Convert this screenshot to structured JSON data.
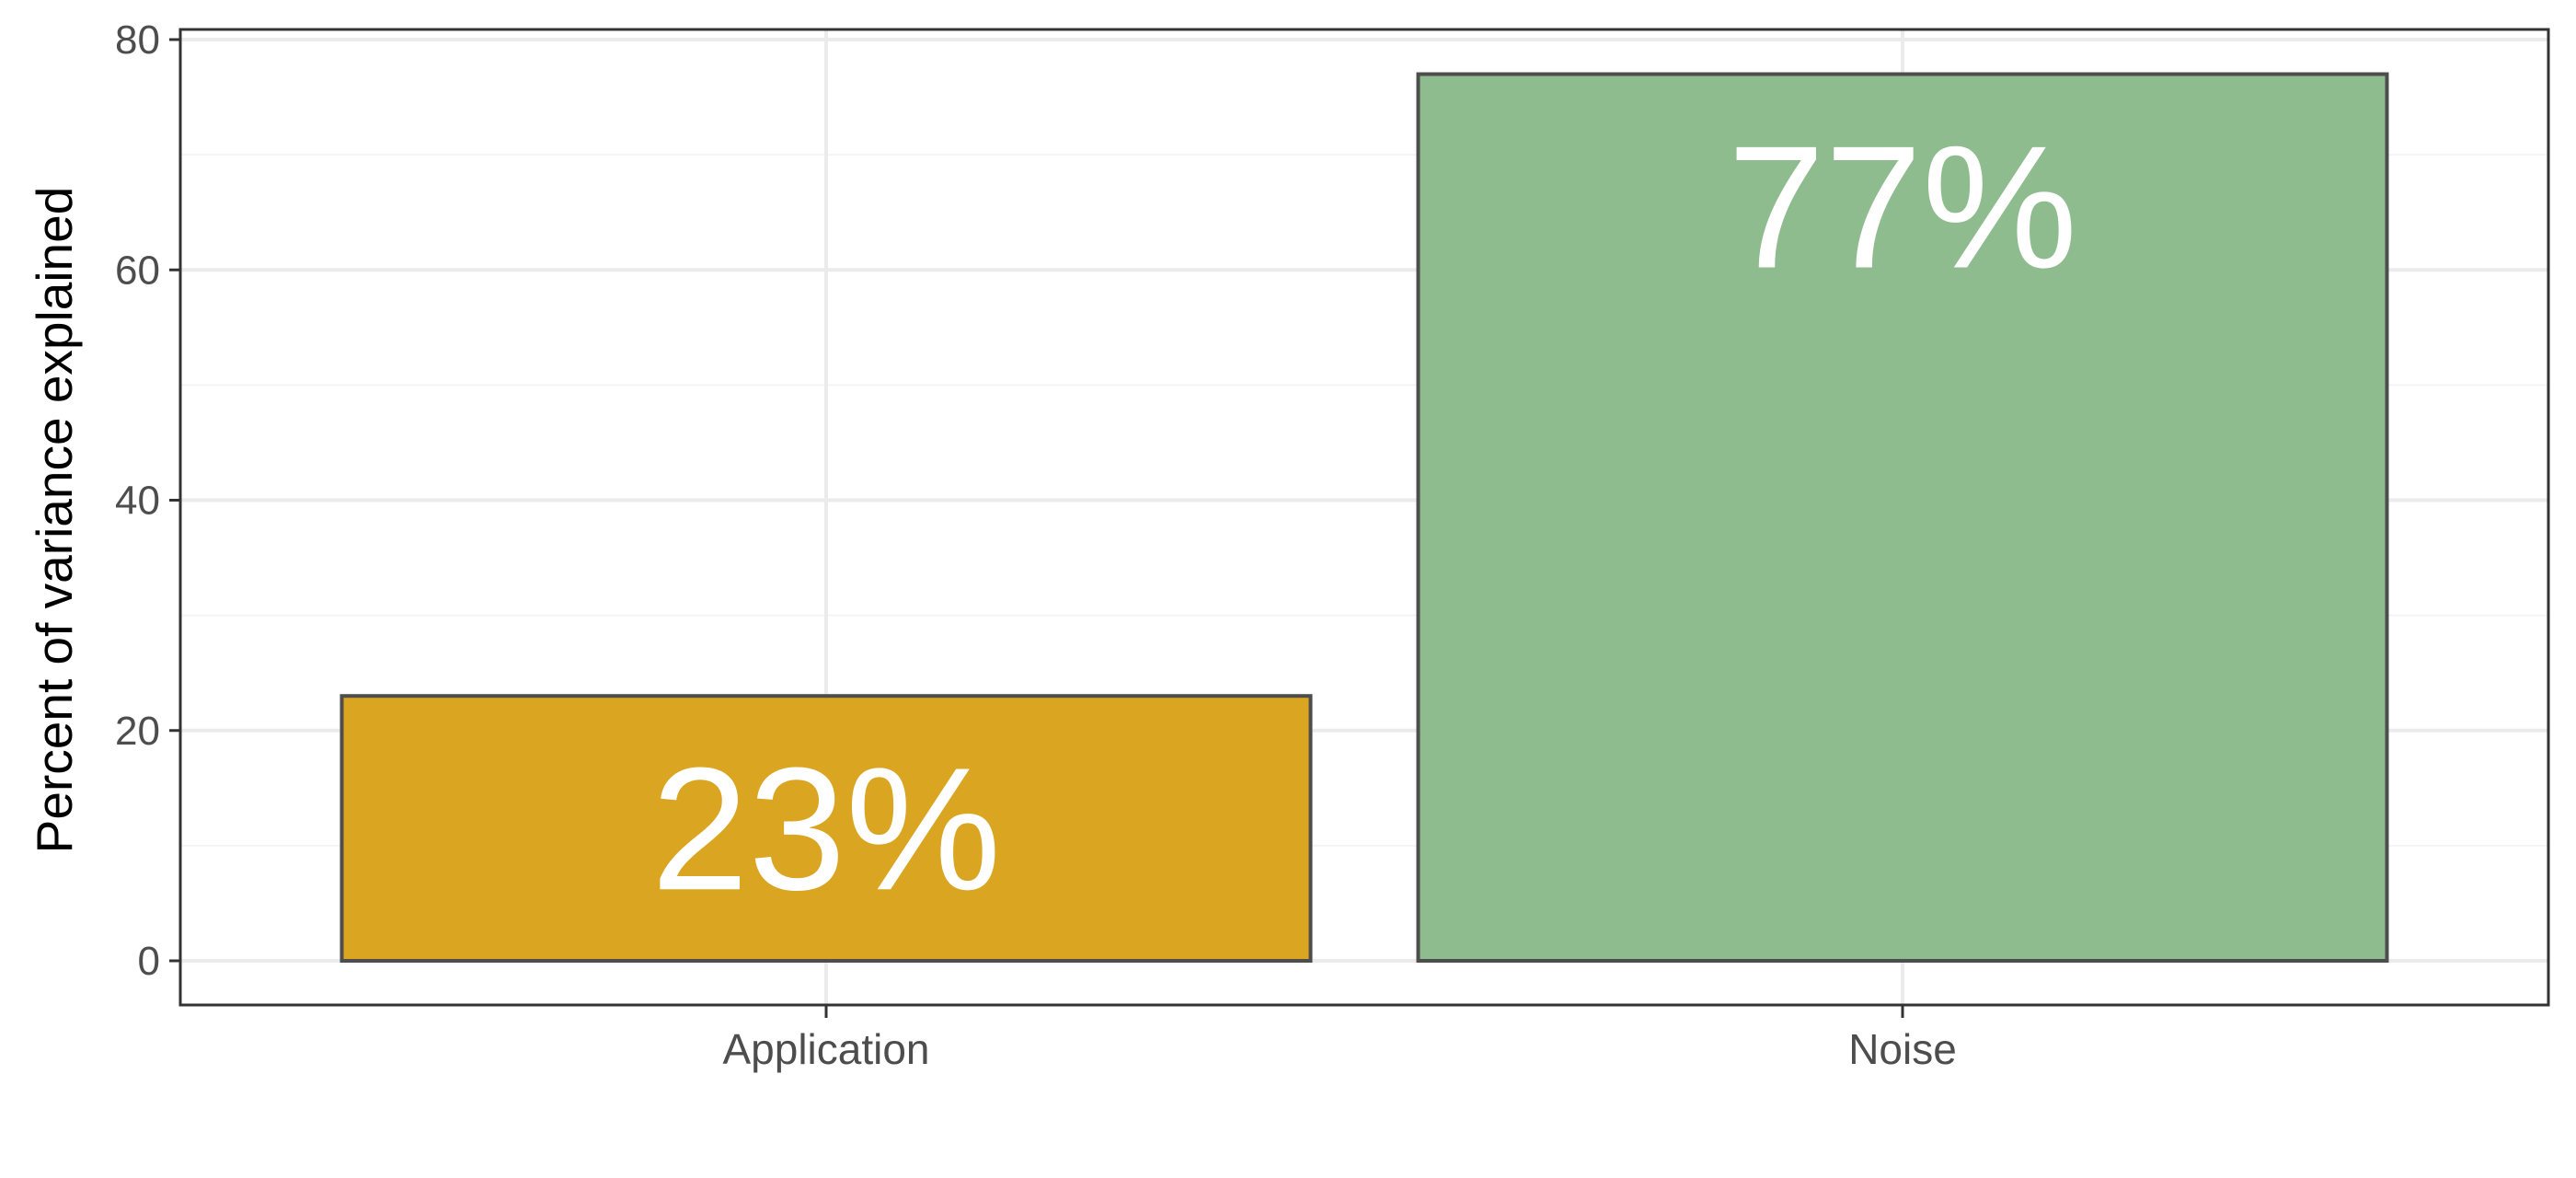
{
  "chart_data": {
    "type": "bar",
    "title": "",
    "xlabel": "",
    "ylabel": "Percent of variance explained",
    "categories": [
      "Application",
      "Noise"
    ],
    "values": [
      23,
      77
    ],
    "data_labels": [
      "23%",
      "77%"
    ],
    "bar_colors": [
      "#DAA520",
      "#8FBC8F"
    ],
    "bar_outline_color": "#4d4d4d",
    "ylim": [
      0,
      80
    ],
    "yticks": [
      0,
      20,
      40,
      60,
      80
    ],
    "grid": true,
    "legend": "none"
  }
}
